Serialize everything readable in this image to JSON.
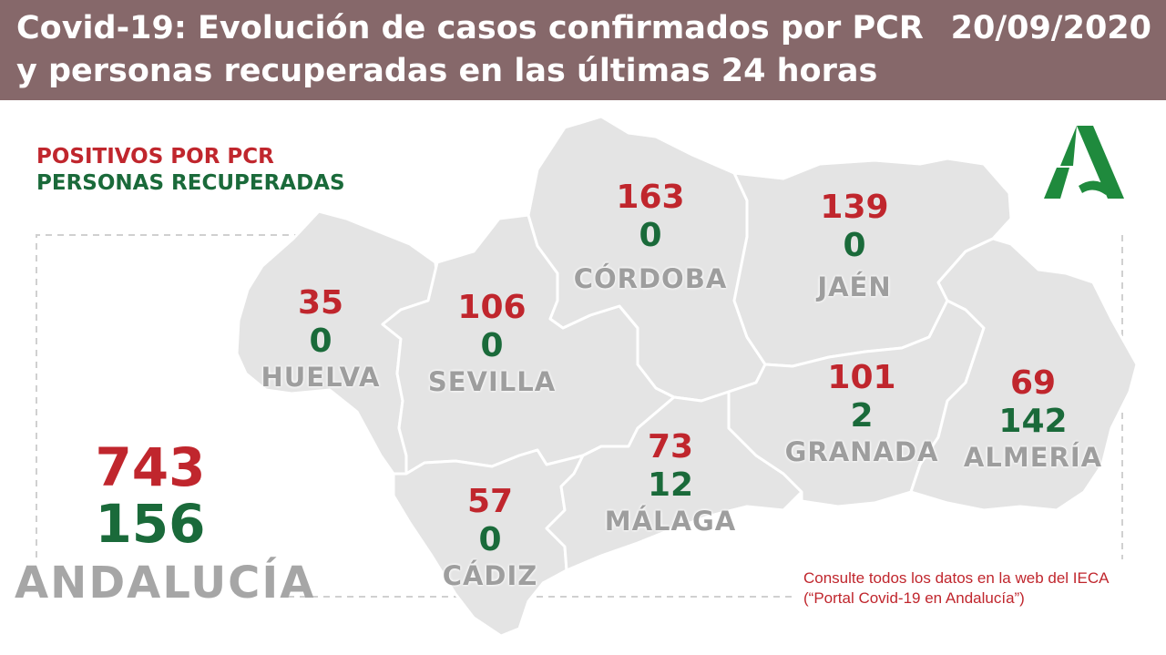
{
  "header": {
    "title": "Covid-19: Evolución de casos confirmados por PCR y personas recuperadas en las últimas 24 horas",
    "date": "20/09/2020"
  },
  "legend": {
    "positives": "POSITIVOS POR PCR",
    "recovered": "PERSONAS RECUPERADAS"
  },
  "provinces": [
    {
      "name": "HUELVA",
      "positives": "35",
      "recovered": "0"
    },
    {
      "name": "SEVILLA",
      "positives": "106",
      "recovered": "0"
    },
    {
      "name": "CÓRDOBA",
      "positives": "163",
      "recovered": "0"
    },
    {
      "name": "JAÉN",
      "positives": "139",
      "recovered": "0"
    },
    {
      "name": "CÁDIZ",
      "positives": "57",
      "recovered": "0"
    },
    {
      "name": "MÁLAGA",
      "positives": "73",
      "recovered": "12"
    },
    {
      "name": "GRANADA",
      "positives": "101",
      "recovered": "2"
    },
    {
      "name": "ALMERÍA",
      "positives": "69",
      "recovered": "142"
    }
  ],
  "total": {
    "region": "ANDALUCÍA",
    "positives": "743",
    "recovered": "156"
  },
  "footer_note": "Consulte todos los datos en la web del IECA (“Portal Covid-19 en Andalucía”)",
  "colors": {
    "header_bg": "#86686a",
    "positives": "#c0262d",
    "recovered": "#1a6a3a",
    "map_fill": "#e4e4e4",
    "logo": "#1f8a3d"
  },
  "icons": {
    "logo": "junta-andalucia-logo-icon"
  }
}
